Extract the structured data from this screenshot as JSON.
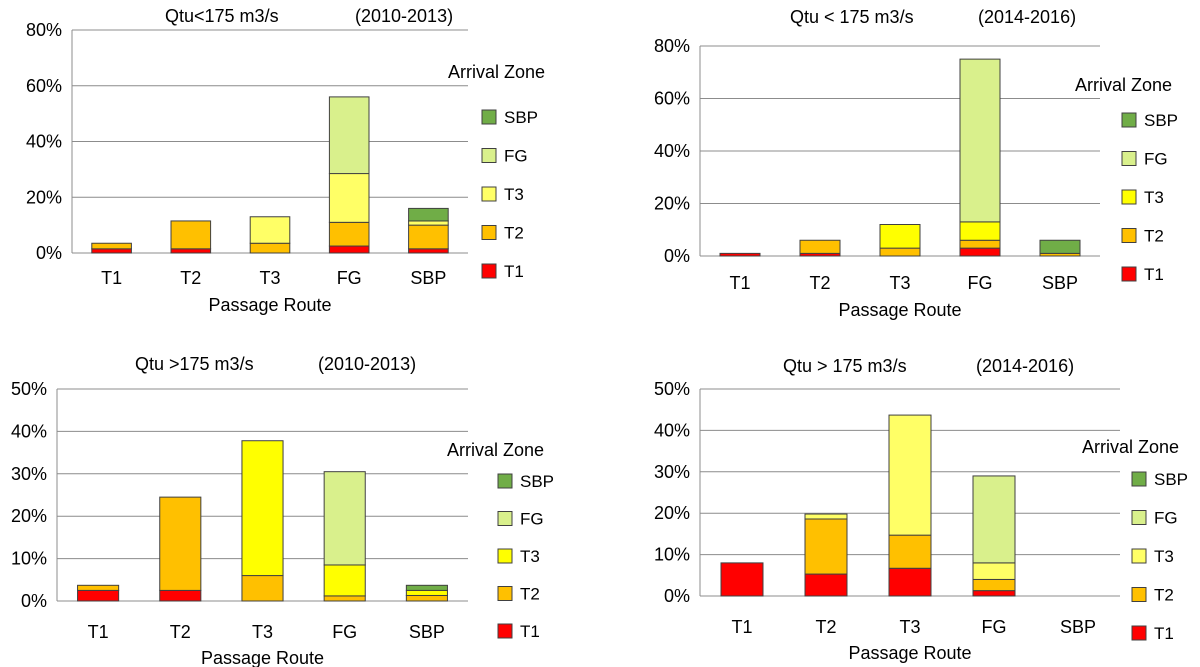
{
  "chart_data": [
    {
      "type": "bar",
      "stacked": true,
      "title": "Qtu<175 m3/s",
      "period": "(2010-2013)",
      "xlabel": "Passage Route",
      "ylabel": "",
      "ylim": [
        0,
        80
      ],
      "y_ticks": [
        "0%",
        "20%",
        "40%",
        "60%",
        "80%"
      ],
      "categories": [
        "T1",
        "T2",
        "T3",
        "FG",
        "SBP"
      ],
      "legend_title": "Arrival Zone",
      "series": [
        {
          "name": "T1",
          "color": "#ff0000",
          "values": [
            1.5,
            1.5,
            0,
            2.5,
            1.5
          ]
        },
        {
          "name": "T2",
          "color": "#ffc000",
          "values": [
            2,
            10,
            3.5,
            8.5,
            8.5
          ]
        },
        {
          "name": "T3",
          "color": "#ffff66",
          "values": [
            0,
            0,
            9.5,
            17.5,
            1.5
          ]
        },
        {
          "name": "FG",
          "color": "#d9f08c",
          "values": [
            0,
            0,
            0,
            27.5,
            0
          ]
        },
        {
          "name": "SBP",
          "color": "#70ad47",
          "values": [
            0,
            0,
            0,
            0,
            4.5
          ]
        }
      ]
    },
    {
      "type": "bar",
      "stacked": true,
      "title": "Qtu < 175 m3/s",
      "period": "(2014-2016)",
      "xlabel": "Passage Route",
      "ylabel": "",
      "ylim": [
        0,
        80
      ],
      "y_ticks": [
        "0%",
        "20%",
        "40%",
        "60%",
        "80%"
      ],
      "categories": [
        "T1",
        "T2",
        "T3",
        "FG",
        "SBP"
      ],
      "legend_title": "Arrival Zone",
      "series": [
        {
          "name": "T1",
          "color": "#ff0000",
          "values": [
            1,
            1,
            0,
            3,
            0
          ]
        },
        {
          "name": "T2",
          "color": "#ffc000",
          "values": [
            0,
            5,
            3,
            3,
            1
          ]
        },
        {
          "name": "T3",
          "color": "#ffff00",
          "values": [
            0,
            0,
            9,
            7,
            0
          ]
        },
        {
          "name": "FG",
          "color": "#d9f08c",
          "values": [
            0,
            0,
            0,
            62,
            0
          ]
        },
        {
          "name": "SBP",
          "color": "#70ad47",
          "values": [
            0,
            0,
            0,
            0,
            5
          ]
        }
      ]
    },
    {
      "type": "bar",
      "stacked": true,
      "title": "Qtu >175 m3/s",
      "period": "(2010-2013)",
      "xlabel": "Passage Route",
      "ylabel": "",
      "ylim": [
        0,
        50
      ],
      "y_ticks": [
        "0%",
        "10%",
        "20%",
        "30%",
        "40%",
        "50%"
      ],
      "categories": [
        "T1",
        "T2",
        "T3",
        "FG",
        "SBP"
      ],
      "legend_title": "Arrival Zone",
      "series": [
        {
          "name": "T1",
          "color": "#ff0000",
          "values": [
            2.5,
            2.5,
            0,
            0,
            0
          ]
        },
        {
          "name": "T2",
          "color": "#ffc000",
          "values": [
            1.2,
            22,
            6,
            1.2,
            1.3
          ]
        },
        {
          "name": "T3",
          "color": "#ffff00",
          "values": [
            0,
            0,
            31.8,
            7.3,
            1.2
          ]
        },
        {
          "name": "FG",
          "color": "#d9f08c",
          "values": [
            0,
            0,
            0,
            22,
            0
          ]
        },
        {
          "name": "SBP",
          "color": "#70ad47",
          "values": [
            0,
            0,
            0,
            0,
            1.2
          ]
        }
      ]
    },
    {
      "type": "bar",
      "stacked": true,
      "title": "Qtu > 175 m3/s",
      "period": "(2014-2016)",
      "xlabel": "Passage Route",
      "ylabel": "",
      "ylim": [
        0,
        50
      ],
      "y_ticks": [
        "0%",
        "10%",
        "20%",
        "30%",
        "40%",
        "50%"
      ],
      "categories": [
        "T1",
        "T2",
        "T3",
        "FG",
        "SBP"
      ],
      "legend_title": "Arrival Zone",
      "series": [
        {
          "name": "T1",
          "color": "#ff0000",
          "values": [
            8,
            5.3,
            6.7,
            1.3,
            0
          ]
        },
        {
          "name": "T2",
          "color": "#ffc000",
          "values": [
            0,
            13.3,
            8,
            2.7,
            0
          ]
        },
        {
          "name": "T3",
          "color": "#ffff66",
          "values": [
            0,
            1.2,
            29,
            4,
            0
          ]
        },
        {
          "name": "FG",
          "color": "#d9f08c",
          "values": [
            0,
            0,
            0,
            21,
            0
          ]
        },
        {
          "name": "SBP",
          "color": "#70ad47",
          "values": [
            0,
            0,
            0,
            0,
            0
          ]
        }
      ]
    }
  ]
}
